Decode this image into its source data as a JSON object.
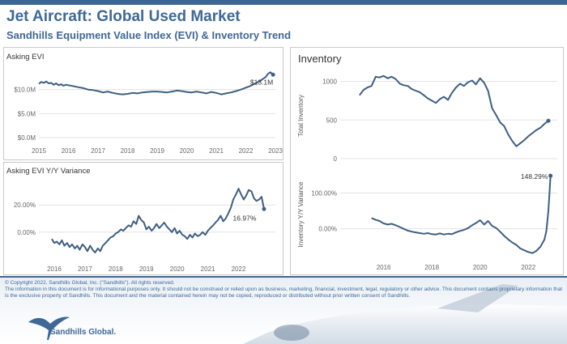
{
  "header": {
    "title": "Jet Aircraft:  Global Used Market",
    "subtitle": "Sandhills Equipment Value Index (EVI) & Inventory Trend"
  },
  "colors": {
    "line": "#3e5f82",
    "accent": "#3f6896",
    "grid": "#e3e3e3"
  },
  "inventory_heading": "Inventory",
  "footer": {
    "copyright": "© Copyright 2022, Sandhills Global, Inc. (\"Sandhills\"). All rights reserved.",
    "disclaimer": "The information in this document is for informational purposes only.  It should not be construed or relied upon as business, marketing, financial, investment, legal, regulatory or other advice. This document contains proprietary information that is the exclusive property of Sandhills. This document and the material contained herein may not be copied, reproduced or distributed without prior written consent of Sandhills.",
    "logo_text": "Sandhills Global."
  },
  "chart_data": [
    {
      "id": "asking_evi",
      "type": "line",
      "title": "Asking EVI",
      "xlabel": "",
      "ylabel": "",
      "x_ticks": [
        "2015",
        "2016",
        "2017",
        "2018",
        "2019",
        "2020",
        "2021",
        "2022",
        "2023"
      ],
      "y_ticks": [
        "$0.0M",
        "$5.0M",
        "$10.0M"
      ],
      "xlim": [
        2015,
        2023
      ],
      "ylim": [
        -0.5,
        15
      ],
      "annotation": "$13.1M",
      "series": [
        {
          "x": [
            2015.0,
            2015.08,
            2015.17,
            2015.25,
            2015.33,
            2015.42,
            2015.5,
            2015.58,
            2015.67,
            2015.75,
            2015.83,
            2015.92,
            2016.0,
            2016.17,
            2016.33,
            2016.5,
            2016.67,
            2016.83,
            2017.0,
            2017.17,
            2017.33,
            2017.5,
            2017.67,
            2017.83,
            2018.0,
            2018.17,
            2018.33,
            2018.5,
            2018.67,
            2018.83,
            2019.0,
            2019.17,
            2019.33,
            2019.5,
            2019.67,
            2019.83,
            2020.0,
            2020.17,
            2020.33,
            2020.5,
            2020.67,
            2020.83,
            2021.0,
            2021.17,
            2021.33,
            2021.5,
            2021.67,
            2021.83,
            2022.0,
            2022.17,
            2022.33,
            2022.5,
            2022.67,
            2022.75,
            2022.83,
            2022.92
          ],
          "y": [
            11.2,
            11.6,
            11.4,
            11.7,
            11.3,
            11.4,
            11.0,
            11.3,
            10.9,
            11.1,
            10.8,
            11.0,
            10.9,
            10.7,
            10.5,
            10.3,
            10.0,
            9.9,
            9.7,
            9.4,
            9.6,
            9.3,
            9.1,
            9.0,
            9.1,
            9.3,
            9.2,
            9.4,
            9.5,
            9.6,
            9.6,
            9.5,
            9.4,
            9.6,
            9.8,
            9.7,
            9.5,
            9.4,
            9.6,
            9.4,
            9.2,
            9.5,
            9.3,
            9.0,
            9.2,
            9.4,
            9.7,
            10.0,
            10.4,
            10.8,
            11.3,
            11.9,
            12.6,
            13.3,
            13.6,
            13.1
          ]
        }
      ]
    },
    {
      "id": "asking_evi_yoy",
      "type": "line",
      "title": "Asking EVI Y/Y Variance",
      "xlabel": "",
      "ylabel": "",
      "x_ticks": [
        "2016",
        "2017",
        "2018",
        "2019",
        "2020",
        "2021",
        "2022"
      ],
      "y_ticks": [
        "0.00%",
        "20.00%"
      ],
      "xlim": [
        2015.5,
        2023.2
      ],
      "ylim": [
        -18,
        38
      ],
      "annotation": "16.97%",
      "series": [
        {
          "x": [
            2015.92,
            2016.0,
            2016.08,
            2016.17,
            2016.25,
            2016.33,
            2016.42,
            2016.5,
            2016.58,
            2016.67,
            2016.75,
            2016.83,
            2016.92,
            2017.0,
            2017.08,
            2017.17,
            2017.25,
            2017.33,
            2017.42,
            2017.5,
            2017.58,
            2017.67,
            2017.75,
            2017.83,
            2017.92,
            2018.0,
            2018.08,
            2018.17,
            2018.25,
            2018.33,
            2018.42,
            2018.5,
            2018.58,
            2018.67,
            2018.75,
            2018.83,
            2018.92,
            2019.0,
            2019.08,
            2019.17,
            2019.25,
            2019.33,
            2019.42,
            2019.5,
            2019.58,
            2019.67,
            2019.75,
            2019.83,
            2019.92,
            2020.0,
            2020.08,
            2020.17,
            2020.25,
            2020.33,
            2020.42,
            2020.5,
            2020.58,
            2020.67,
            2020.75,
            2020.83,
            2020.92,
            2021.0,
            2021.08,
            2021.17,
            2021.25,
            2021.33,
            2021.42,
            2021.5,
            2021.58,
            2021.67,
            2021.75,
            2021.83,
            2021.92,
            2022.0,
            2022.08,
            2022.17,
            2022.25,
            2022.33,
            2022.42,
            2022.5,
            2022.58,
            2022.67,
            2022.75,
            2022.83
          ],
          "y": [
            -5,
            -8,
            -7,
            -9,
            -6,
            -10,
            -8,
            -11,
            -9,
            -12,
            -10,
            -13,
            -9,
            -11,
            -14,
            -10,
            -13,
            -15,
            -12,
            -14,
            -10,
            -8,
            -6,
            -4,
            -3,
            -1,
            0,
            2,
            1,
            3,
            5,
            4,
            8,
            6,
            12,
            9,
            7,
            2,
            4,
            1,
            3,
            6,
            3,
            5,
            7,
            4,
            2,
            0,
            3,
            -1,
            1,
            -2,
            -3,
            -5,
            -2,
            -4,
            -1,
            -3,
            -2,
            0,
            -2,
            1,
            3,
            5,
            7,
            9,
            12,
            8,
            10,
            14,
            18,
            24,
            28,
            32,
            28,
            24,
            27,
            31,
            30,
            25,
            23,
            24,
            26,
            17
          ]
        }
      ]
    },
    {
      "id": "inventory",
      "type": "line",
      "title": "",
      "xlabel": "",
      "ylabel": "Total Inventory",
      "x_ticks": [],
      "y_ticks": [
        "0",
        "500",
        "1000"
      ],
      "xlim": [
        2014.2,
        2023.2
      ],
      "ylim": [
        0,
        1110
      ],
      "series": [
        {
          "x": [
            2015.0,
            2015.17,
            2015.33,
            2015.5,
            2015.67,
            2015.83,
            2016.0,
            2016.17,
            2016.33,
            2016.5,
            2016.67,
            2016.83,
            2017.0,
            2017.17,
            2017.33,
            2017.5,
            2017.67,
            2017.83,
            2018.0,
            2018.17,
            2018.33,
            2018.5,
            2018.67,
            2018.83,
            2019.0,
            2019.17,
            2019.33,
            2019.5,
            2019.67,
            2019.83,
            2020.0,
            2020.17,
            2020.33,
            2020.5,
            2020.67,
            2020.83,
            2021.0,
            2021.17,
            2021.33,
            2021.5,
            2021.67,
            2021.83,
            2022.0,
            2022.17,
            2022.33,
            2022.5,
            2022.67,
            2022.83
          ],
          "y": [
            820,
            890,
            920,
            940,
            1060,
            1050,
            1070,
            1040,
            1060,
            1030,
            970,
            950,
            940,
            900,
            880,
            860,
            820,
            780,
            750,
            720,
            770,
            800,
            760,
            850,
            920,
            970,
            940,
            990,
            1010,
            960,
            1040,
            980,
            880,
            650,
            560,
            470,
            420,
            310,
            230,
            160,
            200,
            240,
            290,
            330,
            370,
            400,
            450,
            490
          ]
        }
      ]
    },
    {
      "id": "inventory_yoy",
      "type": "line",
      "title": "",
      "xlabel": "",
      "ylabel": "Inventory  Y/Y Variance",
      "x_ticks": [
        "2016",
        "2018",
        "2020",
        "2022"
      ],
      "y_ticks": [
        "0.00%",
        "100.00%"
      ],
      "xlim": [
        2014.2,
        2023.2
      ],
      "ylim": [
        -80,
        160
      ],
      "annotation": "148.29%",
      "series": [
        {
          "x": [
            2015.5,
            2015.67,
            2015.83,
            2016.0,
            2016.17,
            2016.33,
            2016.5,
            2016.67,
            2016.83,
            2017.0,
            2017.17,
            2017.33,
            2017.5,
            2017.67,
            2017.83,
            2018.0,
            2018.17,
            2018.33,
            2018.5,
            2018.67,
            2018.83,
            2019.0,
            2019.17,
            2019.33,
            2019.5,
            2019.67,
            2019.83,
            2020.0,
            2020.17,
            2020.33,
            2020.5,
            2020.67,
            2020.83,
            2021.0,
            2021.17,
            2021.33,
            2021.5,
            2021.67,
            2021.83,
            2022.0,
            2022.17,
            2022.33,
            2022.5,
            2022.67,
            2022.75,
            2022.83,
            2022.92
          ],
          "y": [
            30,
            25,
            22,
            15,
            12,
            14,
            10,
            5,
            0,
            -5,
            -8,
            -10,
            -12,
            -14,
            -12,
            -15,
            -16,
            -13,
            -16,
            -14,
            -15,
            -10,
            -6,
            -3,
            2,
            10,
            16,
            24,
            12,
            22,
            8,
            2,
            -8,
            -20,
            -30,
            -38,
            -45,
            -55,
            -60,
            -65,
            -68,
            -62,
            -50,
            -30,
            -5,
            50,
            148.29
          ]
        }
      ]
    }
  ]
}
